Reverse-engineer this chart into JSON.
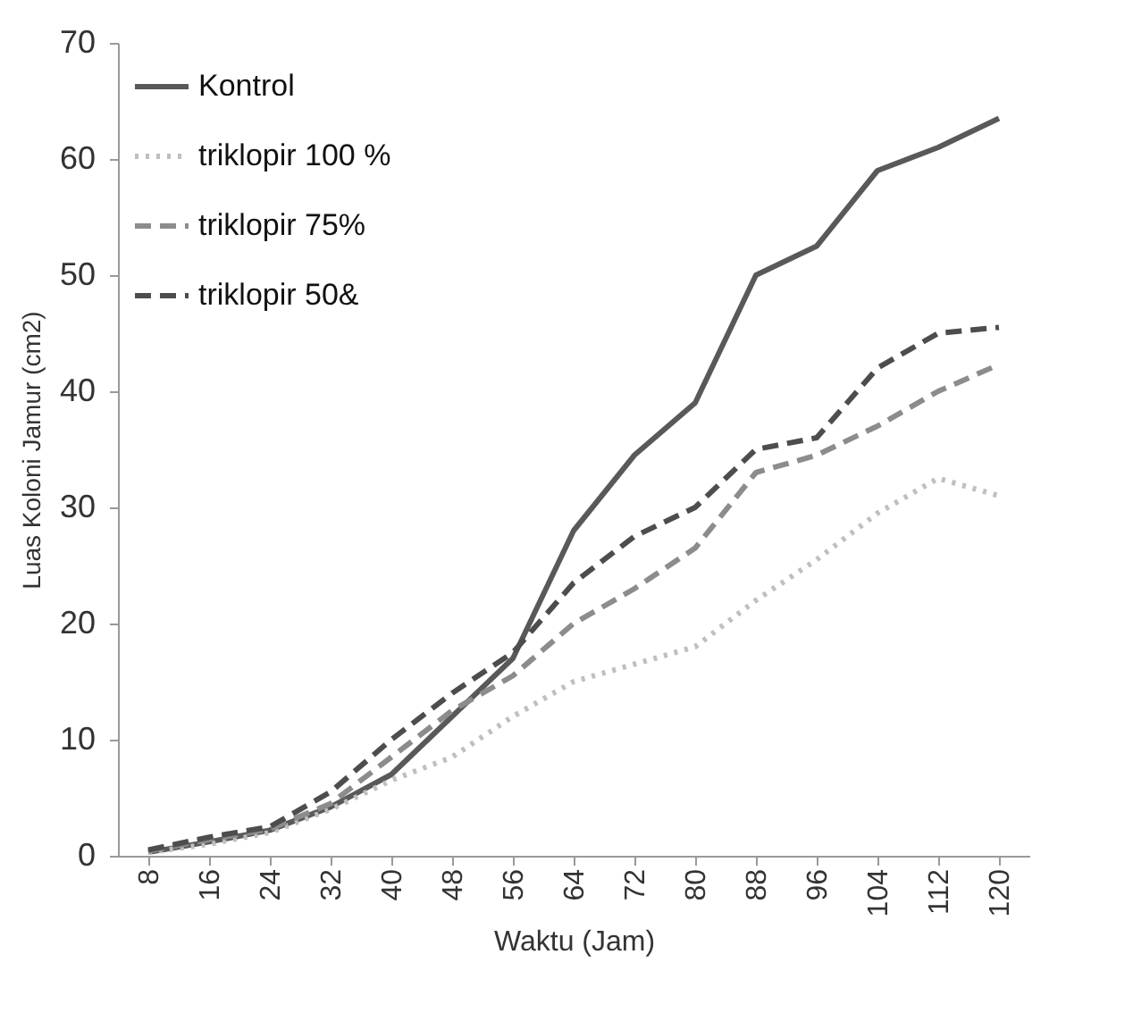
{
  "chart_data": {
    "type": "line",
    "xlabel": "Waktu (Jam)",
    "ylabel": "Luas Koloni Jamur (cm2)",
    "categories": [
      "8",
      "16",
      "24",
      "32",
      "40",
      "48",
      "56",
      "64",
      "72",
      "80",
      "88",
      "96",
      "104",
      "112",
      "120"
    ],
    "series": [
      {
        "name": "Kontrol",
        "color": "#595959",
        "line_style": "solid",
        "values": [
          0.3,
          1.2,
          2.2,
          4.2,
          7,
          12,
          17,
          28,
          34.5,
          39,
          50,
          52.5,
          59,
          61,
          63.5
        ]
      },
      {
        "name": "triklopir 100 %",
        "color": "#bfbfbf",
        "line_style": "dotted",
        "values": [
          0.3,
          1,
          2,
          4,
          6.5,
          8.5,
          12,
          15,
          16.5,
          18,
          22,
          25.5,
          29.5,
          32.5,
          31
        ]
      },
      {
        "name": "triklopir 75%",
        "color": "#8c8c8c",
        "line_style": "dashed",
        "values": [
          0.4,
          1.4,
          2.3,
          4.5,
          8.5,
          12.5,
          15.5,
          20,
          23,
          26.5,
          33,
          34.5,
          37,
          40,
          42.3
        ]
      },
      {
        "name": "triklopir 50&",
        "color": "#4d4d4d",
        "line_style": "dashed",
        "values": [
          0.5,
          1.6,
          2.5,
          5.5,
          10,
          14,
          17.5,
          23.5,
          27.5,
          30,
          35,
          36,
          42,
          45,
          45.5
        ]
      }
    ],
    "ylim": [
      0,
      70
    ],
    "yticks": [
      0,
      10,
      20,
      30,
      40,
      50,
      60,
      70
    ],
    "grid": false,
    "legend": "top left",
    "marker": "none"
  }
}
